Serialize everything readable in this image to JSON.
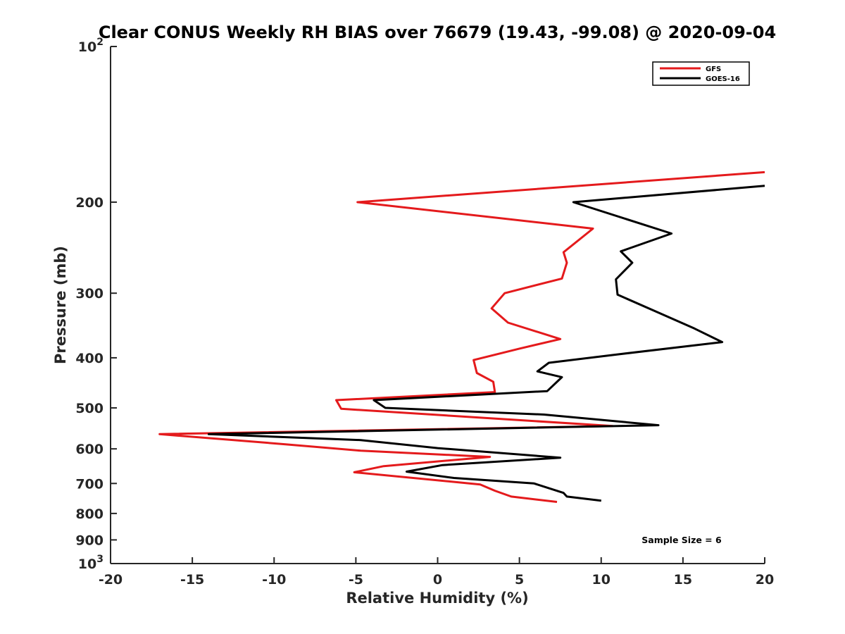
{
  "chart_data": {
    "type": "line",
    "title": "Clear CONUS Weekly RH BIAS over 76679 (19.43, -99.08) @ 2020-09-04",
    "xlabel": "Relative Humidity (%)",
    "ylabel": "Pressure (mb)",
    "xlim": [
      -20,
      20
    ],
    "ylim": [
      100,
      1000
    ],
    "y_scale": "log",
    "y_reversed": true,
    "grid": false,
    "legend_placement": "top-right",
    "x_ticks": [
      "-20",
      "-15",
      "-10",
      "-5",
      "0",
      "5",
      "10",
      "15",
      "20"
    ],
    "y_ticks": [
      {
        "value": 100,
        "base": "10",
        "exp": "2"
      },
      {
        "value": 200,
        "label": "200"
      },
      {
        "value": 300,
        "label": "300"
      },
      {
        "value": 400,
        "label": "400"
      },
      {
        "value": 500,
        "label": "500"
      },
      {
        "value": 600,
        "label": "600"
      },
      {
        "value": 700,
        "label": "700"
      },
      {
        "value": 800,
        "label": "800"
      },
      {
        "value": 900,
        "label": "900"
      },
      {
        "value": 1000,
        "base": "10",
        "exp": "3"
      }
    ],
    "series": [
      {
        "name": "GFS",
        "color": "#e41a1c",
        "points": [
          [
            20.0,
            175
          ],
          [
            -4.9,
            200
          ],
          [
            9.5,
            225
          ],
          [
            7.7,
            250
          ],
          [
            7.9,
            262
          ],
          [
            7.6,
            281
          ],
          [
            4.1,
            300
          ],
          [
            3.3,
            321
          ],
          [
            4.3,
            342
          ],
          [
            7.5,
            368
          ],
          [
            5.0,
            384
          ],
          [
            2.2,
            404
          ],
          [
            2.4,
            428
          ],
          [
            3.4,
            445
          ],
          [
            3.5,
            466
          ],
          [
            -6.2,
            483
          ],
          [
            -5.9,
            502
          ],
          [
            10.7,
            542
          ],
          [
            -17.0,
            562
          ],
          [
            -9.3,
            588
          ],
          [
            -4.7,
            605
          ],
          [
            3.2,
            622
          ],
          [
            -3.3,
            648
          ],
          [
            -5.1,
            666
          ],
          [
            2.6,
            703
          ],
          [
            3.5,
            723
          ],
          [
            4.5,
            742
          ],
          [
            7.3,
            760
          ]
        ]
      },
      {
        "name": "GOES-16",
        "color": "#000000",
        "points": [
          [
            20.0,
            186
          ],
          [
            8.3,
            200
          ],
          [
            14.3,
            230
          ],
          [
            11.2,
            249
          ],
          [
            11.9,
            262
          ],
          [
            10.9,
            282
          ],
          [
            11.0,
            302
          ],
          [
            13.4,
            326
          ],
          [
            15.7,
            351
          ],
          [
            17.4,
            373
          ],
          [
            11.0,
            394
          ],
          [
            6.8,
            409
          ],
          [
            6.1,
            425
          ],
          [
            7.6,
            436
          ],
          [
            6.7,
            464
          ],
          [
            -3.9,
            483
          ],
          [
            -3.2,
            500
          ],
          [
            6.5,
            515
          ],
          [
            13.5,
            540
          ],
          [
            -14.0,
            562
          ],
          [
            -4.7,
            577
          ],
          [
            0.0,
            598
          ],
          [
            7.5,
            624
          ],
          [
            0.3,
            645
          ],
          [
            -1.9,
            664
          ],
          [
            1.0,
            683
          ],
          [
            5.9,
            700
          ],
          [
            7.7,
            730
          ],
          [
            7.9,
            742
          ],
          [
            10.0,
            756
          ]
        ]
      }
    ],
    "annotation": "Sample Size = 6"
  }
}
